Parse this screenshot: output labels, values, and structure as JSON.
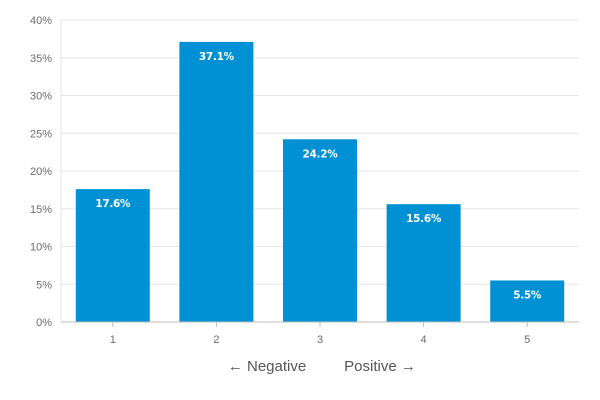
{
  "chart_data": {
    "type": "bar",
    "categories": [
      "1",
      "2",
      "3",
      "4",
      "5"
    ],
    "values": [
      17.6,
      37.1,
      24.2,
      15.6,
      5.5
    ],
    "data_labels": [
      "17.6%",
      "37.1%",
      "24.2%",
      "15.6%",
      "5.5%"
    ],
    "ylim": [
      0,
      40
    ],
    "yticks": [
      0,
      5,
      10,
      15,
      20,
      25,
      30,
      35,
      40
    ],
    "ytick_labels": [
      "0%",
      "5%",
      "10%",
      "15%",
      "20%",
      "25%",
      "30%",
      "35%",
      "40%"
    ],
    "xlabel_left": "← Negative",
    "xlabel_right": "Positive →",
    "grid": true,
    "bar_color": "#0091d5",
    "grid_color": "#e6e6e6",
    "axis_color": "#bdbdbd"
  }
}
